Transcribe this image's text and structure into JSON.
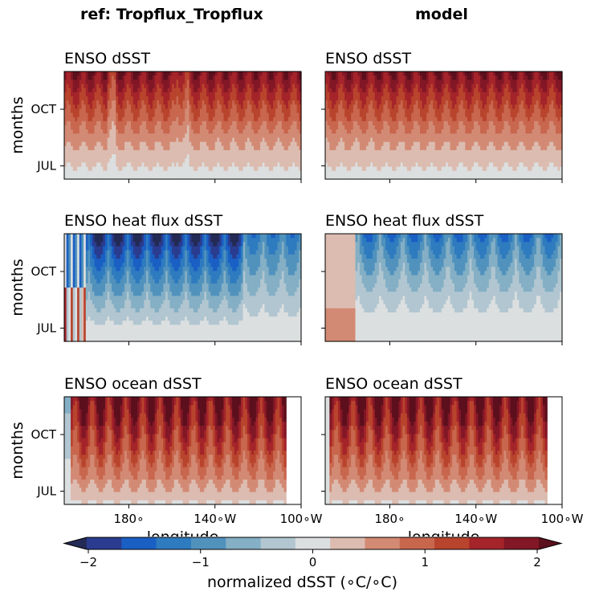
{
  "figure": {
    "column_titles": [
      "ref: Tropflux_Tropflux",
      "model"
    ],
    "ylabel": "months",
    "xlabel": "longitude",
    "colorbar_label": "normalized dSST ($^\\circ$C/$^\\circ$C)",
    "colorbar_label_display": "normalized dSST (∘C/∘C)"
  },
  "chart_data": {
    "type": "heatmap",
    "panels": [
      {
        "title": "ENSO dSST",
        "column": "ref: Tropflux_Tropflux",
        "row": 0
      },
      {
        "title": "ENSO dSST",
        "column": "model",
        "row": 0
      },
      {
        "title": "ENSO heat flux dSST",
        "column": "ref: Tropflux_Tropflux",
        "row": 1
      },
      {
        "title": "ENSO heat flux dSST",
        "column": "model",
        "row": 1
      },
      {
        "title": "ENSO ocean dSST",
        "column": "ref: Tropflux_Tropflux",
        "row": 2
      },
      {
        "title": "ENSO ocean dSST",
        "column": "model",
        "row": 2
      }
    ],
    "x_ticks": [
      "180∘",
      "140∘W",
      "100∘W"
    ],
    "x_tick_values": [
      180,
      220,
      260
    ],
    "xlim": [
      150,
      260
    ],
    "y_ticks": [
      "OCT",
      "JUL"
    ],
    "y_tick_values": [
      10,
      7
    ],
    "ylim": [
      6.3,
      12
    ],
    "colorbar": {
      "ticks": [
        -2,
        -1,
        0,
        1,
        2
      ],
      "tick_labels": [
        "−2",
        "−1",
        "0",
        "1",
        "2"
      ],
      "range": [
        -2,
        2
      ],
      "levels": [
        -2.0,
        -1.75,
        -1.5,
        -1.25,
        -1.0,
        -0.75,
        -0.5,
        -0.25,
        0.25,
        0.5,
        0.75,
        1.0,
        1.25,
        1.5,
        1.75,
        2.0
      ],
      "colors": [
        "#232a55",
        "#2a3c8f",
        "#1a5fc4",
        "#2e7bbf",
        "#5192bd",
        "#84afc5",
        "#b1c6d0",
        "#dcdfe0",
        "#dcbcb0",
        "#d38a74",
        "#c8664e",
        "#b9442d",
        "#a4242a",
        "#821726",
        "#5c0f1c"
      ],
      "extend": "both"
    }
  }
}
